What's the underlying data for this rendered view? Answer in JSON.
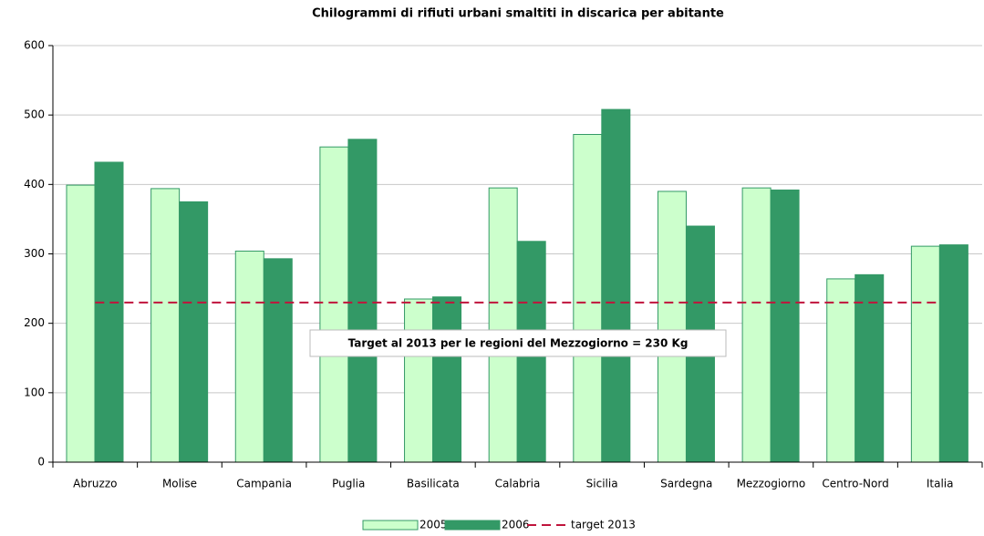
{
  "chart_data": {
    "type": "bar",
    "title": "Chilogrammi di rifiuti urbani smaltiti in discarica per abitante",
    "categories": [
      "Abruzzo",
      "Molise",
      "Campania",
      "Puglia",
      "Basilicata",
      "Calabria",
      "Sicilia",
      "Sardegna",
      "Mezzogiorno",
      "Centro-Nord",
      "Italia"
    ],
    "series": [
      {
        "name": "2005",
        "color": "#ccffcc",
        "values": [
          399,
          394,
          304,
          454,
          235,
          395,
          472,
          390,
          395,
          264,
          311
        ]
      },
      {
        "name": "2006",
        "color": "#339966",
        "values": [
          432,
          375,
          293,
          465,
          238,
          318,
          508,
          340,
          392,
          270,
          313
        ]
      },
      {
        "name": "target 2013",
        "type": "line",
        "color": "#c0143c",
        "values": [
          230,
          230,
          230,
          230,
          230,
          230,
          230,
          230,
          230,
          230,
          230
        ]
      }
    ],
    "annotation": "Target al 2013 per le regioni del Mezzogiorno = 230 Kg",
    "ylim": [
      0,
      600
    ],
    "yticks": [
      0,
      100,
      200,
      300,
      400,
      500,
      600
    ],
    "grid": true,
    "legend": "bottom"
  }
}
